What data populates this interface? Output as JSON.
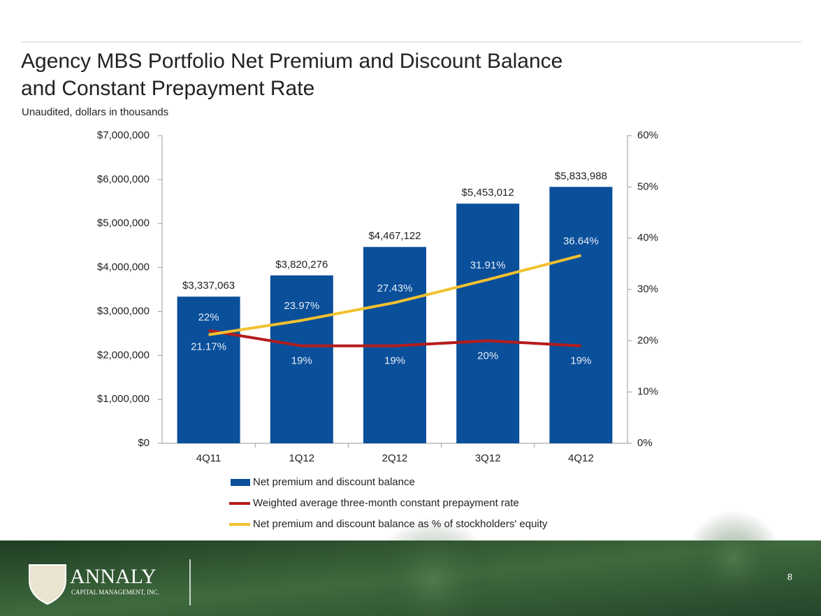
{
  "header": {
    "title_line1": "Agency MBS Portfolio Net Premium and Discount Balance",
    "title_line2": "and Constant Prepayment Rate",
    "subtitle": "Unaudited, dollars in thousands"
  },
  "chart_data": {
    "type": "bar",
    "categories": [
      "4Q11",
      "1Q12",
      "2Q12",
      "3Q12",
      "4Q12"
    ],
    "series": [
      {
        "name": "Net premium and discount balance",
        "type": "bar",
        "color": "#0a4f9a",
        "values": [
          3337063,
          3820276,
          4467122,
          5453012,
          5833988
        ],
        "value_labels": [
          "$3,337,063",
          "$3,820,276",
          "$4,467,122",
          "$5,453,012",
          "$5,833,988"
        ]
      },
      {
        "name": "Weighted average three-month constant prepayment rate",
        "type": "line",
        "axis": "y2",
        "color": "#b51c1c",
        "values": [
          22,
          19,
          19,
          20,
          19
        ],
        "value_labels": [
          "22%",
          "19%",
          "19%",
          "20%",
          "19%"
        ]
      },
      {
        "name": "Net premium and discount balance as % of stockholders' equity",
        "type": "line",
        "axis": "y2",
        "color": "#f2c12e",
        "values": [
          21.17,
          23.97,
          27.43,
          31.91,
          36.64
        ],
        "value_labels": [
          "21.17%",
          "23.97%",
          "27.43%",
          "31.91%",
          "36.64%"
        ]
      }
    ],
    "ylim": [
      0,
      7000000
    ],
    "yticks": [
      {
        "value": 0,
        "label": "$0"
      },
      {
        "value": 1000000,
        "label": "$1,000,000"
      },
      {
        "value": 2000000,
        "label": "$2,000,000"
      },
      {
        "value": 3000000,
        "label": "$3,000,000"
      },
      {
        "value": 4000000,
        "label": "$4,000,000"
      },
      {
        "value": 5000000,
        "label": "$5,000,000"
      },
      {
        "value": 6000000,
        "label": "$6,000,000"
      },
      {
        "value": 7000000,
        "label": "$7,000,000"
      }
    ],
    "y2lim": [
      0,
      60
    ],
    "y2ticks": [
      {
        "value": 0,
        "label": "0%"
      },
      {
        "value": 10,
        "label": "10%"
      },
      {
        "value": 20,
        "label": "20%"
      },
      {
        "value": 30,
        "label": "30%"
      },
      {
        "value": 40,
        "label": "40%"
      },
      {
        "value": 50,
        "label": "50%"
      },
      {
        "value": 60,
        "label": "60%"
      }
    ],
    "grid": false,
    "legend": "bottom"
  },
  "footer": {
    "logo": "ANNALY",
    "logo_sub": "CAPITAL MANAGEMENT, INC.",
    "page_number": 8
  }
}
